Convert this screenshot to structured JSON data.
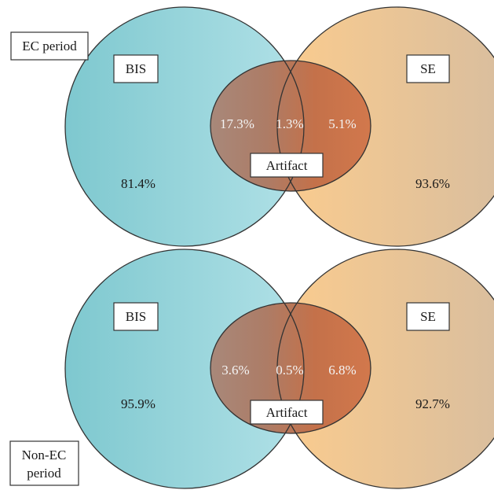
{
  "colors": {
    "bis_light": "#a9dfe5",
    "bis_dark": "#7ec8cf",
    "se_light": "#f8c98e",
    "se_dark": "#d8bd9e",
    "artifact_left": "#a88574",
    "artifact_center": "#c46e48",
    "artifact_right": "#d2744a",
    "outline": "#333333"
  },
  "panels": [
    {
      "period_label": "EC period",
      "bis_label": "BIS",
      "se_label": "SE",
      "artifact_label": "Artifact",
      "bis_pct": "81.4%",
      "se_pct": "93.6%",
      "bis_artifact_pct": "17.3%",
      "all_pct": "1.3%",
      "se_artifact_pct": "5.1%"
    },
    {
      "period_label_line1": "Non-EC",
      "period_label_line2": "period",
      "bis_label": "BIS",
      "se_label": "SE",
      "artifact_label": "Artifact",
      "bis_pct": "95.9%",
      "se_pct": "92.7%",
      "bis_artifact_pct": "3.6%",
      "all_pct": "0.5%",
      "se_artifact_pct": "6.8%"
    }
  ]
}
